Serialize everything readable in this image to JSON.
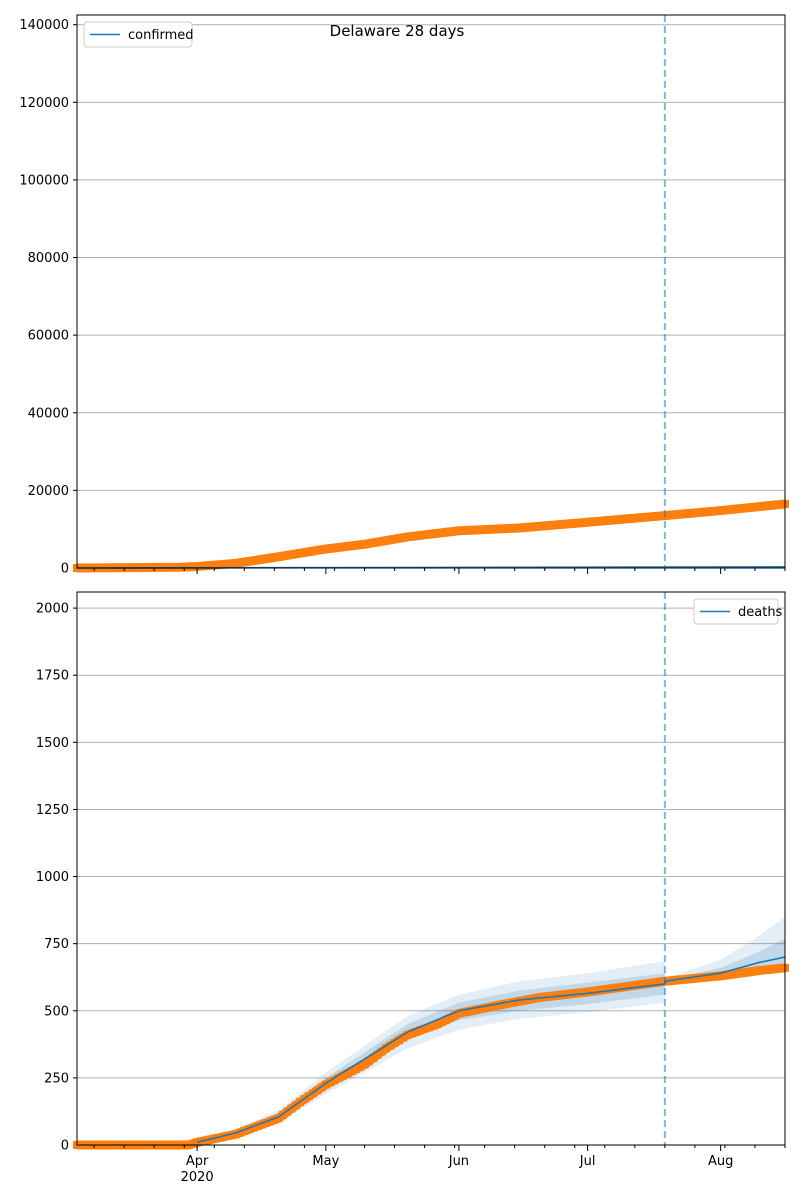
{
  "chart_data": [
    {
      "type": "line",
      "title": "Delaware 28 days",
      "legend": {
        "entries": [
          "confirmed"
        ],
        "placement": "top-left"
      },
      "ylim": [
        0,
        142500
      ],
      "yticks": [
        0,
        20000,
        40000,
        60000,
        80000,
        100000,
        120000,
        140000
      ],
      "xlim": [
        "2020-03-04",
        "2020-08-16"
      ],
      "forecast_start": "2020-07-19",
      "grid": true,
      "observed": {
        "dates": [
          "2020-03-04",
          "2020-03-28",
          "2020-04-01",
          "2020-04-10",
          "2020-04-20",
          "2020-05-01",
          "2020-05-10",
          "2020-05-20",
          "2020-06-01",
          "2020-06-15",
          "2020-07-01",
          "2020-07-19",
          "2020-08-01",
          "2020-08-16"
        ],
        "values": [
          0,
          200,
          400,
          1200,
          2900,
          4900,
          6100,
          8000,
          9600,
          10300,
          11800,
          13500,
          14800,
          16500
        ]
      },
      "model": {
        "dates": [
          "2020-03-04",
          "2020-08-16"
        ],
        "mean": [
          0,
          300
        ]
      }
    },
    {
      "type": "line",
      "title": "",
      "legend": {
        "entries": [
          "deaths"
        ],
        "placement": "top-right"
      },
      "ylim": [
        0,
        2060
      ],
      "yticks": [
        0,
        250,
        500,
        750,
        1000,
        1250,
        1500,
        1750,
        2000
      ],
      "xlim": [
        "2020-03-04",
        "2020-08-16"
      ],
      "forecast_start": "2020-07-19",
      "grid": true,
      "observed": {
        "dates": [
          "2020-03-04",
          "2020-03-30",
          "2020-04-01",
          "2020-04-10",
          "2020-04-20",
          "2020-04-25",
          "2020-05-01",
          "2020-05-10",
          "2020-05-15",
          "2020-05-20",
          "2020-05-27",
          "2020-06-01",
          "2020-06-10",
          "2020-06-20",
          "2020-07-01",
          "2020-07-10",
          "2020-07-19",
          "2020-08-01",
          "2020-08-10",
          "2020-08-16"
        ],
        "values": [
          0,
          0,
          10,
          40,
          100,
          160,
          225,
          300,
          360,
          410,
          450,
          490,
          520,
          550,
          570,
          590,
          610,
          630,
          650,
          660
        ]
      },
      "model": {
        "dates": [
          "2020-04-01",
          "2020-04-10",
          "2020-04-20",
          "2020-05-01",
          "2020-05-10",
          "2020-05-20",
          "2020-06-01",
          "2020-06-15",
          "2020-07-01",
          "2020-07-19",
          "2020-07-19",
          "2020-08-01",
          "2020-08-10",
          "2020-08-16"
        ],
        "mean": [
          10,
          45,
          105,
          230,
          320,
          420,
          500,
          540,
          565,
          600,
          610,
          640,
          680,
          700
        ],
        "inner_lo": [
          8,
          38,
          92,
          210,
          295,
          390,
          465,
          500,
          525,
          560,
          610,
          630,
          650,
          660
        ],
        "inner_hi": [
          12,
          52,
          118,
          250,
          345,
          450,
          530,
          575,
          605,
          640,
          615,
          660,
          720,
          770
        ],
        "outer_lo": [
          5,
          30,
          80,
          190,
          270,
          360,
          430,
          470,
          495,
          530,
          610,
          625,
          640,
          650
        ],
        "outer_hi": [
          15,
          60,
          130,
          270,
          370,
          480,
          560,
          610,
          640,
          685,
          620,
          690,
          780,
          850
        ]
      }
    }
  ],
  "x_tick_labels": [
    "Apr\n2020",
    "May",
    "Jun",
    "Jul",
    "Aug"
  ],
  "x_tick_dates": [
    "2020-04-01",
    "2020-05-01",
    "2020-06-01",
    "2020-07-01",
    "2020-08-01"
  ],
  "colors": {
    "observed": "#ff7f0e",
    "model": "#1f77b4",
    "grid": "#b0b0b0"
  }
}
